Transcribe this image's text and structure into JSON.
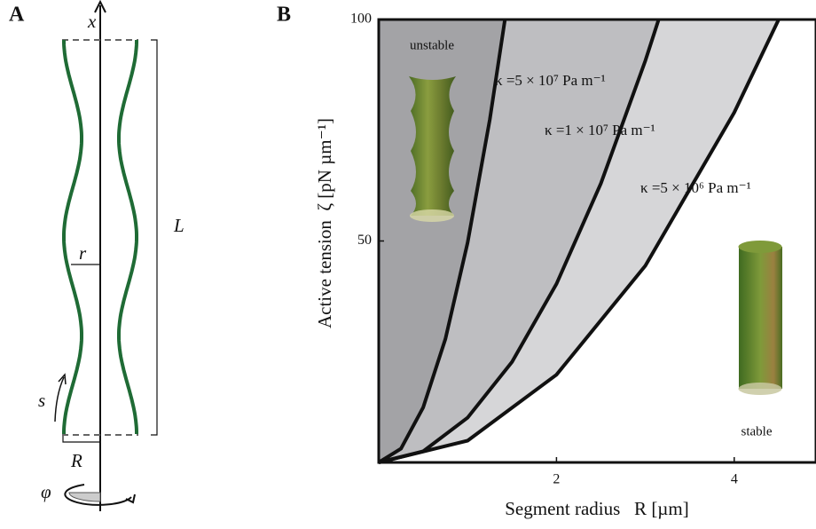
{
  "panel_a": {
    "panel_label": "A",
    "labels": {
      "axis": "x",
      "radius": "r",
      "length": "L",
      "arc": "s",
      "segment_radius": "R",
      "angle": "φ"
    }
  },
  "chart_data": {
    "type": "line",
    "panel_label": "B",
    "x_label": "Segment radius   R [µm]",
    "y_label": "Active tension  ζ [pN µm⁻¹]",
    "xlim": [
      0,
      4.92
    ],
    "ylim": [
      0,
      100
    ],
    "xticks": [
      2,
      4
    ],
    "yticks": [
      50,
      100
    ],
    "series": [
      {
        "name": "κ =5 × 10⁷ Pa m⁻¹",
        "color": "#111111",
        "fill": "#a3a3a6",
        "x": [
          0,
          0.25,
          0.5,
          0.75,
          1.0,
          1.25,
          1.42
        ],
        "values": [
          0,
          3.1,
          12.4,
          27.9,
          49.6,
          77.5,
          100
        ]
      },
      {
        "name": "κ =1 × 10⁷ Pa m⁻¹",
        "color": "#111111",
        "fill": "#bebec1",
        "x": [
          0,
          0.5,
          1,
          1.5,
          2,
          2.5,
          3,
          3.15
        ],
        "values": [
          0,
          2.5,
          10.1,
          22.7,
          40.3,
          63.0,
          90.7,
          100
        ]
      },
      {
        "name": "κ =5 × 10⁶ Pa m⁻¹",
        "color": "#111111",
        "fill": "#d6d6d8",
        "x": [
          0,
          1,
          2,
          3,
          4,
          4.5
        ],
        "values": [
          0,
          4.9,
          19.8,
          44.4,
          79.0,
          100
        ]
      }
    ],
    "region_labels": [
      "unstable",
      "stable"
    ]
  }
}
